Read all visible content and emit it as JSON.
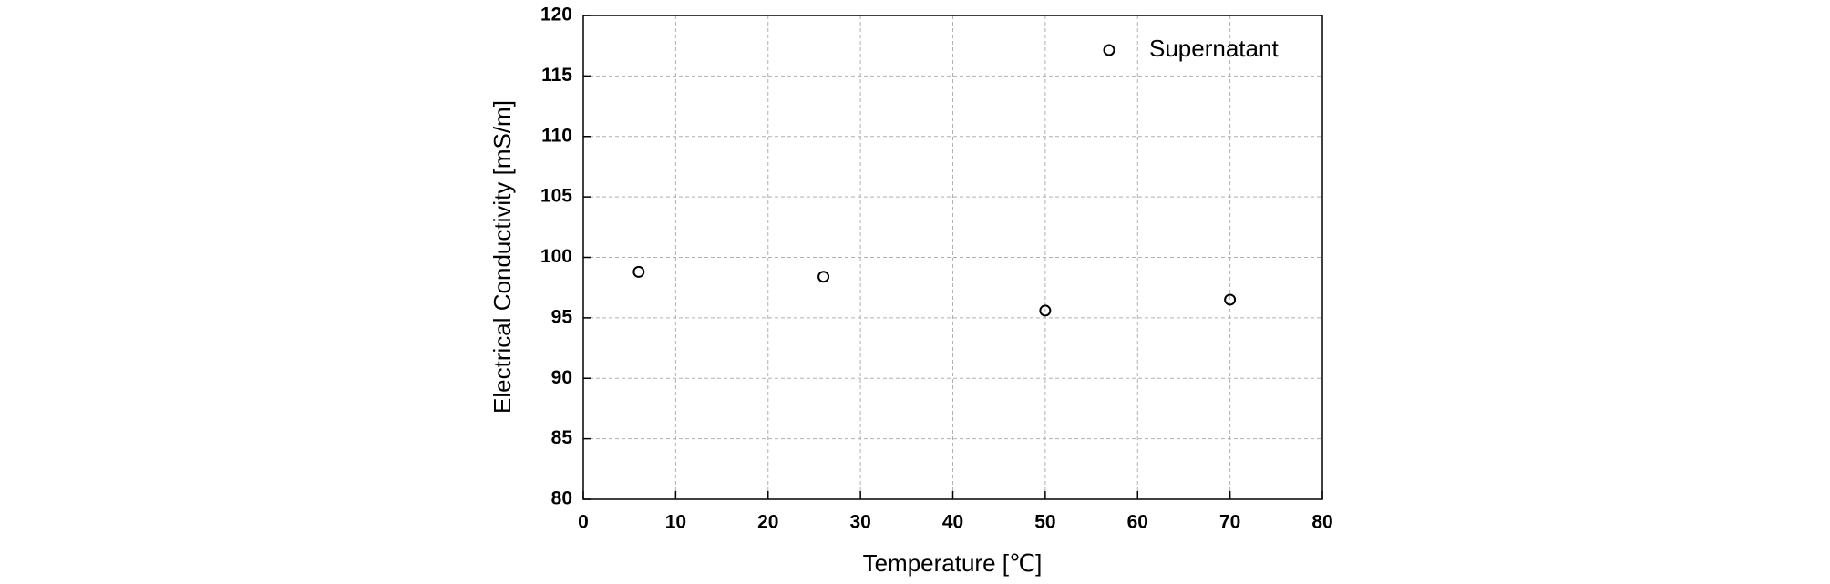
{
  "chart_data": {
    "type": "scatter",
    "xlabel": "Temperature [℃]",
    "ylabel": "Electrical Conductivity [mS/m]",
    "series": [
      {
        "name": "Supernatant",
        "color": "#000000",
        "x": [
          6,
          26,
          50,
          70
        ],
        "values": [
          98.8,
          98.4,
          95.6,
          96.5
        ]
      }
    ],
    "xlim": [
      0,
      80
    ],
    "xticks": [
      0,
      10,
      20,
      30,
      40,
      50,
      60,
      70,
      80
    ],
    "ylim": [
      80,
      120
    ],
    "yticks": [
      80,
      85,
      90,
      95,
      100,
      105,
      110,
      115,
      120
    ],
    "grid": true,
    "legend": "upper right"
  }
}
